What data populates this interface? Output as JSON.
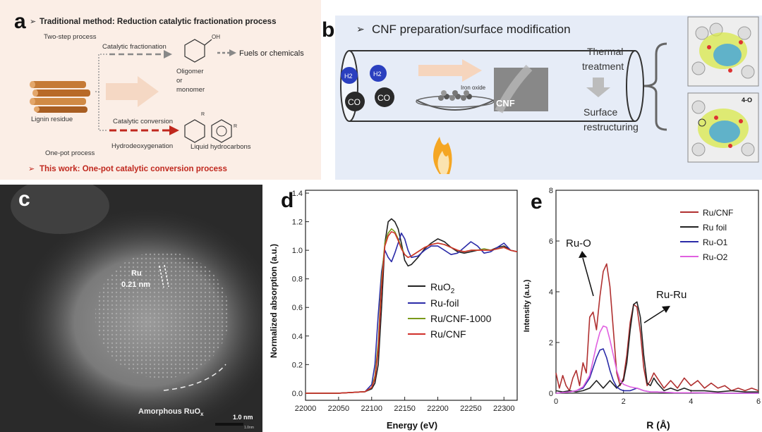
{
  "panel_a": {
    "letter": "a",
    "heading": "Traditional method: Reduction catalytic fractionation process",
    "two_step": "Two-step process",
    "catalytic_fractionation": "Catalytic fractionation",
    "oh": "OH",
    "fuels": "Fuels or chemicals",
    "oligomer_1": "Oligomer",
    "oligomer_2": "or",
    "oligomer_3": "monomer",
    "lignin": "Lignin residue",
    "catalytic_conversion": "Catalytic conversion",
    "r1": "R",
    "r2": "R",
    "hydrodeoxygenation": "Hydrodeoxygenation",
    "liquid_hc": "Liquid hydrocarbons",
    "one_pot": "One-pot process",
    "this_work": "This work: One-pot catalytic conversion process"
  },
  "panel_b": {
    "letter": "b",
    "heading": "CNF preparation/surface modification",
    "h2_a": "H2",
    "h2_b": "H2",
    "co_a": "CO",
    "co_b": "CO",
    "iron_oxide": "Iron oxide",
    "cnf": "CNF",
    "thermal_1": "Thermal",
    "thermal_2": "treatment",
    "surface_1": "Surface",
    "surface_2": "restructuring",
    "model_label": "4-O"
  },
  "panel_c": {
    "letter": "c",
    "ru": "Ru",
    "spacing": "0.21 nm",
    "amorphous": "Amorphous RuO",
    "amorphous_sub": "x",
    "scale": "1.0 nm",
    "scale_small": "1.0nm"
  },
  "panel_d": {
    "letter": "d",
    "ylabel": "Normalized absorption (a.u.)",
    "xlabel": "Energy (eV)",
    "legend": [
      "RuO2",
      "Ru-foil",
      "Ru/CNF-1000",
      "Ru/CNF"
    ]
  },
  "panel_e": {
    "letter": "e",
    "ylabel": "Intensity (a.u.)",
    "xlabel": "R (Å)",
    "ruo_label": "Ru-O",
    "ruru_label": "Ru-Ru",
    "legend": [
      "Ru/CNF",
      "Ru foil",
      "Ru-O1",
      "Ru-O2"
    ]
  },
  "chart_data": [
    {
      "type": "line",
      "panel": "d",
      "xlabel": "Energy (eV)",
      "ylabel": "Normalized absorption (a.u.)",
      "xlim": [
        22000,
        22320
      ],
      "ylim": [
        -0.05,
        1.42
      ],
      "x_ticks": [
        22000,
        22050,
        22100,
        22150,
        22200,
        22250,
        22300
      ],
      "y_ticks": [
        0.0,
        0.2,
        0.4,
        0.6,
        0.8,
        1.0,
        1.2,
        1.4
      ],
      "legend_position": "center-right",
      "series": [
        {
          "name": "RuO2",
          "color": "#222222",
          "x": [
            22000,
            22050,
            22090,
            22100,
            22105,
            22110,
            22115,
            22120,
            22125,
            22130,
            22135,
            22140,
            22145,
            22150,
            22155,
            22160,
            22170,
            22180,
            22190,
            22200,
            22210,
            22220,
            22230,
            22240,
            22250,
            22260,
            22270,
            22280,
            22290,
            22300,
            22310,
            22320
          ],
          "y": [
            0.0,
            0.0,
            0.01,
            0.03,
            0.07,
            0.2,
            0.6,
            1.05,
            1.2,
            1.22,
            1.2,
            1.15,
            1.05,
            0.93,
            0.89,
            0.9,
            0.95,
            1.01,
            1.05,
            1.08,
            1.06,
            1.02,
            0.99,
            0.98,
            0.99,
            1.0,
            1.01,
            1.0,
            1.02,
            1.03,
            1.0,
            0.99
          ]
        },
        {
          "name": "Ru-foil",
          "color": "#2b2ba8",
          "x": [
            22000,
            22050,
            22090,
            22100,
            22105,
            22110,
            22115,
            22120,
            22125,
            22130,
            22135,
            22140,
            22145,
            22150,
            22155,
            22160,
            22170,
            22180,
            22190,
            22200,
            22210,
            22220,
            22230,
            22240,
            22250,
            22260,
            22270,
            22280,
            22290,
            22300,
            22310,
            22320
          ],
          "y": [
            0.0,
            0.0,
            0.01,
            0.06,
            0.2,
            0.55,
            0.85,
            1.0,
            0.95,
            0.92,
            0.98,
            1.05,
            1.12,
            1.08,
            1.0,
            0.95,
            0.96,
            1.0,
            1.03,
            1.03,
            1.0,
            0.97,
            0.98,
            1.02,
            1.06,
            1.03,
            0.98,
            0.99,
            1.02,
            1.05,
            1.0,
            0.99
          ]
        },
        {
          "name": "Ru/CNF-1000",
          "color": "#7a9a1a",
          "x": [
            22000,
            22050,
            22090,
            22100,
            22105,
            22110,
            22115,
            22120,
            22125,
            22130,
            22135,
            22140,
            22145,
            22150,
            22155,
            22160,
            22170,
            22180,
            22190,
            22200,
            22210,
            22220,
            22230,
            22240,
            22250,
            22260,
            22270,
            22280,
            22290,
            22300,
            22310,
            22320
          ],
          "y": [
            0.0,
            0.0,
            0.01,
            0.04,
            0.12,
            0.35,
            0.8,
            1.05,
            1.12,
            1.15,
            1.13,
            1.08,
            1.02,
            0.97,
            0.95,
            0.96,
            0.99,
            1.02,
            1.04,
            1.05,
            1.04,
            1.02,
            1.0,
            0.99,
            1.0,
            1.0,
            1.01,
            1.0,
            1.01,
            1.02,
            1.0,
            0.99
          ]
        },
        {
          "name": "Ru/CNF",
          "color": "#d0302a",
          "x": [
            22000,
            22050,
            22090,
            22100,
            22105,
            22110,
            22115,
            22120,
            22125,
            22130,
            22135,
            22140,
            22145,
            22150,
            22155,
            22160,
            22170,
            22180,
            22190,
            22200,
            22210,
            22220,
            22230,
            22240,
            22250,
            22260,
            22270,
            22280,
            22290,
            22300,
            22310,
            22320
          ],
          "y": [
            0.0,
            0.0,
            0.01,
            0.04,
            0.1,
            0.3,
            0.75,
            1.03,
            1.1,
            1.13,
            1.12,
            1.07,
            1.01,
            0.97,
            0.95,
            0.96,
            0.99,
            1.02,
            1.04,
            1.05,
            1.04,
            1.02,
            1.0,
            0.99,
            1.0,
            1.0,
            1.0,
            1.0,
            1.01,
            1.02,
            1.0,
            0.99
          ]
        }
      ]
    },
    {
      "type": "line",
      "panel": "e",
      "xlabel": "R (Å)",
      "ylabel": "Intensity (a.u.)",
      "xlim": [
        0,
        6
      ],
      "ylim": [
        0,
        8
      ],
      "x_ticks": [
        0,
        2,
        4,
        6
      ],
      "y_ticks": [
        0,
        2,
        4,
        6,
        8
      ],
      "legend_position": "top-right",
      "series": [
        {
          "name": "Ru/CNF",
          "color": "#b03030",
          "x": [
            0,
            0.1,
            0.2,
            0.3,
            0.4,
            0.5,
            0.6,
            0.7,
            0.8,
            0.9,
            1.0,
            1.1,
            1.2,
            1.3,
            1.4,
            1.5,
            1.6,
            1.7,
            1.8,
            1.9,
            2.0,
            2.1,
            2.2,
            2.3,
            2.4,
            2.5,
            2.6,
            2.7,
            2.8,
            2.9,
            3.0,
            3.2,
            3.4,
            3.6,
            3.8,
            4.0,
            4.2,
            4.4,
            4.6,
            4.8,
            5.0,
            5.2,
            5.4,
            5.6,
            5.8,
            6.0
          ],
          "y": [
            0.8,
            0.2,
            0.7,
            0.3,
            0.1,
            0.6,
            0.9,
            0.3,
            1.2,
            0.8,
            3.0,
            3.2,
            2.5,
            3.8,
            4.8,
            5.1,
            4.2,
            2.5,
            0.8,
            0.3,
            0.6,
            1.5,
            2.8,
            3.5,
            3.4,
            2.4,
            1.0,
            0.3,
            0.5,
            0.8,
            0.6,
            0.2,
            0.5,
            0.2,
            0.6,
            0.3,
            0.5,
            0.2,
            0.4,
            0.2,
            0.3,
            0.1,
            0.2,
            0.1,
            0.2,
            0.1
          ]
        },
        {
          "name": "Ru foil",
          "color": "#222222",
          "x": [
            0,
            0.2,
            0.4,
            0.6,
            0.8,
            1.0,
            1.2,
            1.4,
            1.6,
            1.8,
            2.0,
            2.1,
            2.2,
            2.3,
            2.4,
            2.5,
            2.6,
            2.7,
            2.8,
            2.9,
            3.0,
            3.2,
            3.4,
            3.6,
            3.8,
            4.0,
            4.4,
            4.8,
            5.2,
            5.6,
            6.0
          ],
          "y": [
            0.1,
            0.05,
            0.1,
            0.05,
            0.1,
            0.2,
            0.5,
            0.2,
            0.5,
            0.2,
            0.5,
            1.2,
            2.5,
            3.5,
            3.6,
            3.0,
            1.5,
            0.4,
            0.3,
            0.6,
            0.4,
            0.1,
            0.2,
            0.1,
            0.2,
            0.1,
            0.1,
            0.05,
            0.1,
            0.05,
            0.05
          ]
        },
        {
          "name": "Ru-O1",
          "color": "#2b2ba8",
          "x": [
            0,
            0.4,
            0.6,
            0.8,
            1.0,
            1.1,
            1.2,
            1.3,
            1.4,
            1.5,
            1.6,
            1.7,
            1.8,
            1.9,
            2.0,
            2.2,
            2.4,
            2.6,
            2.8,
            3.0,
            3.5,
            4.0,
            5.0,
            6.0
          ],
          "y": [
            0.0,
            0.05,
            0.1,
            0.2,
            0.6,
            1.0,
            1.4,
            1.7,
            1.75,
            1.4,
            0.9,
            0.5,
            0.25,
            0.15,
            0.1,
            0.1,
            0.2,
            0.1,
            0.05,
            0.05,
            0.02,
            0.02,
            0.0,
            0.0
          ]
        },
        {
          "name": "Ru-O2",
          "color": "#e060e0",
          "x": [
            0,
            0.4,
            0.6,
            0.8,
            1.0,
            1.1,
            1.2,
            1.3,
            1.4,
            1.5,
            1.6,
            1.7,
            1.8,
            1.9,
            2.0,
            2.1,
            2.2,
            2.4,
            2.6,
            2.8,
            3.0,
            3.5,
            4.0,
            5.0,
            6.0
          ],
          "y": [
            0.0,
            0.05,
            0.1,
            0.25,
            0.7,
            1.3,
            1.9,
            2.4,
            2.65,
            2.6,
            2.1,
            1.5,
            0.9,
            0.5,
            0.35,
            0.3,
            0.25,
            0.2,
            0.1,
            0.05,
            0.05,
            0.02,
            0.02,
            0.0,
            0.0
          ]
        }
      ]
    }
  ]
}
